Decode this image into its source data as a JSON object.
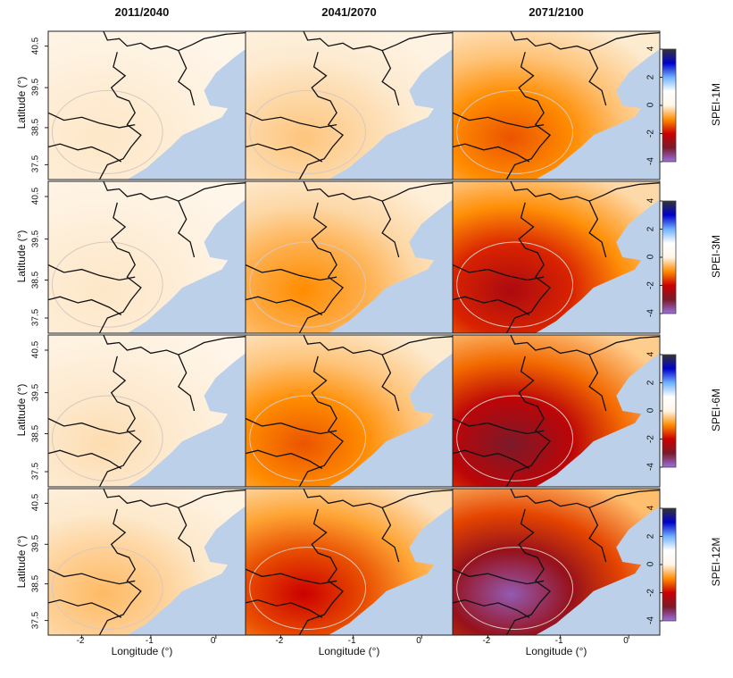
{
  "column_titles": [
    "2011/2040",
    "2041/2070",
    "2071/2100"
  ],
  "colorbar_labels": [
    "SPEI-1M",
    "SPEI-3M",
    "SPEI-6M",
    "SPEI-12M"
  ],
  "colorbar_ticks": [
    "4",
    "2",
    "0",
    "-2",
    "-4"
  ],
  "axes": {
    "ylabel": "Latitude (°)",
    "xlabel": "Longitude (°)",
    "y_ticks": [
      "40.5",
      "39.5",
      "38.5",
      "37.5"
    ],
    "x_ticks": [
      "-2",
      "-1",
      "0"
    ]
  },
  "colors": {
    "sea": "#bcd0ea",
    "border": "#111111",
    "contour": "#d8c8c0",
    "scale": [
      "#9b6fe0",
      "#7a1a2a",
      "#cc0000",
      "#ff8c00",
      "#fff6e8",
      "#ffffff",
      "#6fb0ff",
      "#0000cc",
      "#333333"
    ]
  },
  "chart_data": {
    "type": "heatmap",
    "title": "",
    "rows": [
      "SPEI-1M",
      "SPEI-3M",
      "SPEI-6M",
      "SPEI-12M"
    ],
    "columns": [
      "2011/2040",
      "2041/2070",
      "2071/2100"
    ],
    "xlabel": "Longitude (°)",
    "ylabel": "Latitude (°)",
    "xlim": [
      -2.6,
      0.4
    ],
    "ylim": [
      37.1,
      40.9
    ],
    "colorbar_range": [
      -4,
      4
    ],
    "approx_min_value": [
      [
        -0.4,
        -0.7,
        -1.6
      ],
      [
        -0.4,
        -1.2,
        -2.6
      ],
      [
        -0.5,
        -1.6,
        -3.2
      ],
      [
        -0.8,
        -2.2,
        -3.8
      ]
    ]
  }
}
